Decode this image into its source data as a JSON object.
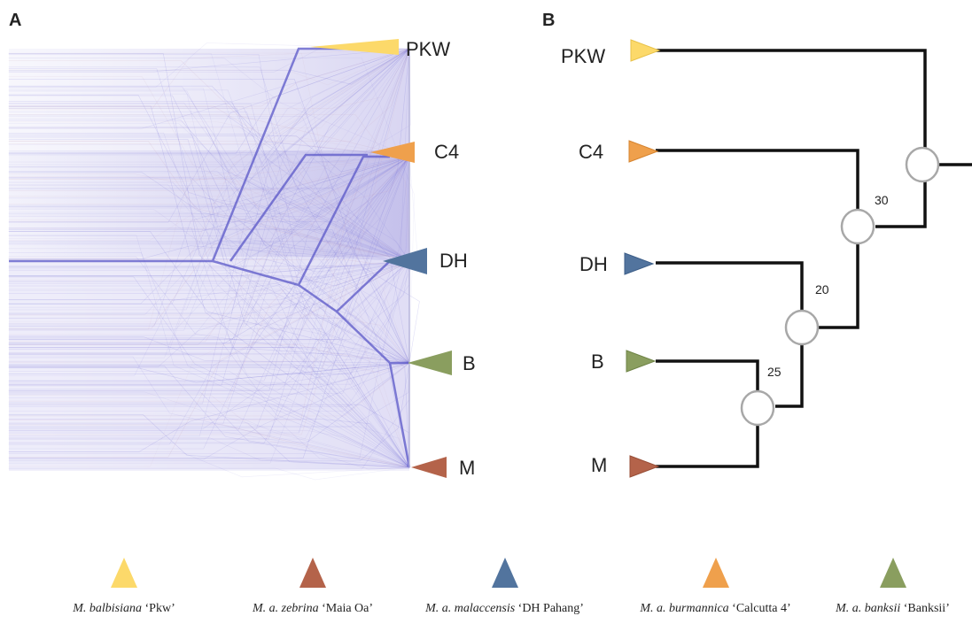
{
  "panels": {
    "a": "A",
    "b": "B"
  },
  "taxa": [
    {
      "id": "pkw",
      "label": "PKW",
      "color": "#FCD96A"
    },
    {
      "id": "c4",
      "label": "C4",
      "color": "#EFA04C"
    },
    {
      "id": "dh",
      "label": "DH",
      "color": "#52749E"
    },
    {
      "id": "b",
      "label": "B",
      "color": "#8A9E5F"
    },
    {
      "id": "m",
      "label": "M",
      "color": "#B4634A"
    }
  ],
  "node_labels": {
    "dh_bm": "20",
    "b_m": "25",
    "c4_clade": "30"
  },
  "legend": [
    {
      "species": "M. balbisiana",
      "cultivar": " ‘Pkw’",
      "color": "#FCD96A"
    },
    {
      "species": "M. a. zebrina",
      "cultivar": " ‘Maia Oa’",
      "color": "#B4634A"
    },
    {
      "species": "M. a. malaccensis",
      "cultivar": " ‘DH Pahang’",
      "color": "#52749E"
    },
    {
      "species": "M. a. burmannica",
      "cultivar": " ‘Calcutta 4’",
      "color": "#EFA04C"
    },
    {
      "species": "M. a. banksii",
      "cultivar": " ‘Banksii’",
      "color": "#8A9E5F"
    }
  ]
}
